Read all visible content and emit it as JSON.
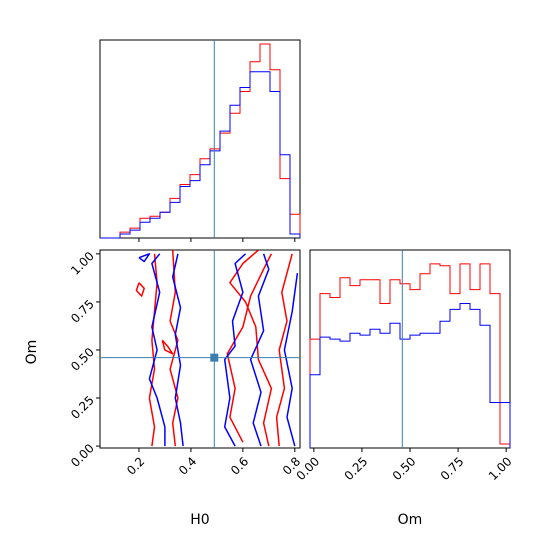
{
  "colors": {
    "series_red": "#ff0000",
    "series_blue": "#0000ff",
    "truth": "#3b7fb0"
  },
  "chart_data": {
    "type": "corner",
    "parameters": [
      "H0",
      "Om"
    ],
    "truth": {
      "H0": 0.49,
      "Om": 0.46
    },
    "panels": [
      {
        "id": "hist_H0",
        "type": "histogram",
        "xlim": [
          0.05,
          0.82
        ],
        "bin_edges": [
          0.05,
          0.0885,
          0.127,
          0.1655,
          0.204,
          0.2425,
          0.281,
          0.3195,
          0.358,
          0.3965,
          0.435,
          0.4735,
          0.512,
          0.5505,
          0.589,
          0.6275,
          0.666,
          0.7045,
          0.743,
          0.7815,
          0.82
        ],
        "series": [
          {
            "color": "red",
            "values": [
              0,
              0,
              0.03,
              0.05,
              0.1,
              0.11,
              0.13,
              0.2,
              0.27,
              0.32,
              0.4,
              0.45,
              0.53,
              0.63,
              0.74,
              0.89,
              0.98,
              0.85,
              0.3,
              0.12
            ]
          },
          {
            "color": "blue",
            "values": [
              0,
              0,
              0.02,
              0.04,
              0.08,
              0.1,
              0.13,
              0.18,
              0.26,
              0.29,
              0.37,
              0.44,
              0.54,
              0.67,
              0.76,
              0.84,
              0.84,
              0.74,
              0.42,
              0.02
            ]
          }
        ]
      },
      {
        "id": "contour_H0_Om",
        "type": "contour",
        "xlabel": "H0",
        "ylabel": "Om",
        "xlim": [
          0.05,
          0.82
        ],
        "ylim": [
          -0.01,
          1.02
        ],
        "xticks": [
          0.2,
          0.4,
          0.6,
          0.8
        ],
        "xtick_labels": [
          "0.2",
          "0.4",
          "0.6",
          "0.8"
        ],
        "yticks": [
          0.0,
          0.25,
          0.5,
          0.75,
          1.0
        ],
        "ytick_labels": [
          "0.00",
          "0.25",
          "0.50",
          "0.75",
          "1.00"
        ],
        "series": [
          {
            "color": "red",
            "paths": [
              [
                [
                  0.25,
                  0.0
                ],
                [
                  0.26,
                  0.1
                ],
                [
                  0.24,
                  0.25
                ],
                [
                  0.26,
                  0.4
                ],
                [
                  0.25,
                  0.55
                ],
                [
                  0.26,
                  0.7
                ],
                [
                  0.27,
                  0.85
                ],
                [
                  0.26,
                  1.0
                ]
              ],
              [
                [
                  0.34,
                  0.0
                ],
                [
                  0.33,
                  0.12
                ],
                [
                  0.35,
                  0.25
                ],
                [
                  0.32,
                  0.4
                ],
                [
                  0.35,
                  0.55
                ],
                [
                  0.32,
                  0.65
                ],
                [
                  0.34,
                  0.8
                ],
                [
                  0.33,
                  1.02
                ]
              ],
              [
                [
                  0.7,
                  0.0
                ],
                [
                  0.68,
                  0.12
                ],
                [
                  0.71,
                  0.3
                ],
                [
                  0.66,
                  0.45
                ],
                [
                  0.65,
                  0.62
                ],
                [
                  0.61,
                  0.75
                ],
                [
                  0.55,
                  0.85
                ],
                [
                  0.6,
                  0.95
                ],
                [
                  0.66,
                  1.02
                ]
              ],
              [
                [
                  0.6,
                  0.02
                ],
                [
                  0.55,
                  0.15
                ],
                [
                  0.57,
                  0.3
                ],
                [
                  0.54,
                  0.48
                ],
                [
                  0.6,
                  0.62
                ],
                [
                  0.63,
                  0.78
                ],
                [
                  0.68,
                  0.92
                ],
                [
                  0.71,
                  1.0
                ]
              ],
              [
                [
                  0.74,
                  0.0
                ],
                [
                  0.73,
                  0.15
                ],
                [
                  0.76,
                  0.3
                ],
                [
                  0.74,
                  0.5
                ],
                [
                  0.77,
                  0.65
                ],
                [
                  0.75,
                  0.8
                ],
                [
                  0.79,
                  1.0
                ]
              ],
              [
                [
                  0.2,
                  0.85
                ],
                [
                  0.22,
                  0.82
                ],
                [
                  0.21,
                  0.78
                ],
                [
                  0.19,
                  0.81
                ],
                [
                  0.2,
                  0.85
                ]
              ],
              [
                [
                  0.29,
                  0.55
                ],
                [
                  0.3,
                  0.5
                ],
                [
                  0.33,
                  0.48
                ],
                [
                  0.31,
                  0.52
                ],
                [
                  0.29,
                  0.55
                ]
              ]
            ]
          },
          {
            "color": "blue",
            "paths": [
              [
                [
                  0.3,
                  0.0
                ],
                [
                  0.3,
                  0.1
                ],
                [
                  0.27,
                  0.25
                ],
                [
                  0.24,
                  0.35
                ],
                [
                  0.27,
                  0.5
                ],
                [
                  0.25,
                  0.62
                ],
                [
                  0.28,
                  0.8
                ],
                [
                  0.25,
                  0.95
                ],
                [
                  0.28,
                  1.0
                ]
              ],
              [
                [
                  0.37,
                  0.0
                ],
                [
                  0.36,
                  0.12
                ],
                [
                  0.34,
                  0.25
                ],
                [
                  0.36,
                  0.42
                ],
                [
                  0.34,
                  0.58
                ],
                [
                  0.36,
                  0.72
                ],
                [
                  0.33,
                  0.88
                ],
                [
                  0.35,
                  1.0
                ]
              ],
              [
                [
                  0.57,
                  0.0
                ],
                [
                  0.53,
                  0.1
                ],
                [
                  0.55,
                  0.25
                ],
                [
                  0.53,
                  0.45
                ],
                [
                  0.57,
                  0.52
                ],
                [
                  0.56,
                  0.65
                ],
                [
                  0.6,
                  0.8
                ],
                [
                  0.57,
                  0.95
                ],
                [
                  0.61,
                  1.0
                ]
              ],
              [
                [
                  0.67,
                  0.0
                ],
                [
                  0.64,
                  0.12
                ],
                [
                  0.67,
                  0.28
                ],
                [
                  0.63,
                  0.45
                ],
                [
                  0.68,
                  0.6
                ],
                [
                  0.66,
                  0.78
                ],
                [
                  0.7,
                  0.92
                ],
                [
                  0.68,
                  1.0
                ]
              ],
              [
                [
                  0.8,
                  0.0
                ],
                [
                  0.77,
                  0.15
                ],
                [
                  0.79,
                  0.3
                ],
                [
                  0.76,
                  0.5
                ],
                [
                  0.79,
                  0.7
                ],
                [
                  0.81,
                  0.9
                ]
              ],
              [
                [
                  0.2,
                  0.98
                ],
                [
                  0.24,
                  1.0
                ],
                [
                  0.22,
                  0.96
                ],
                [
                  0.2,
                  0.98
                ]
              ]
            ]
          }
        ]
      },
      {
        "id": "hist_Om",
        "type": "histogram",
        "xlabel": "Om",
        "xlim": [
          -0.02,
          1.02
        ],
        "xticks": [
          0.0,
          0.25,
          0.5,
          0.75,
          1.0
        ],
        "xtick_labels": [
          "0.00",
          "0.25",
          "0.50",
          "0.75",
          "1.00"
        ],
        "bin_edges": [
          -0.02,
          0.032,
          0.084,
          0.136,
          0.188,
          0.24,
          0.292,
          0.344,
          0.396,
          0.448,
          0.5,
          0.552,
          0.604,
          0.656,
          0.708,
          0.76,
          0.812,
          0.864,
          0.916,
          0.968,
          1.02
        ],
        "series": [
          {
            "color": "red",
            "values": [
              0.55,
              0.78,
              0.76,
              0.86,
              0.82,
              0.85,
              0.85,
              0.73,
              0.85,
              0.83,
              0.8,
              0.88,
              0.93,
              0.92,
              0.78,
              0.93,
              0.8,
              0.93,
              0.78,
              0.02
            ]
          },
          {
            "color": "blue",
            "values": [
              0.37,
              0.56,
              0.55,
              0.54,
              0.58,
              0.57,
              0.6,
              0.58,
              0.63,
              0.55,
              0.57,
              0.58,
              0.58,
              0.64,
              0.7,
              0.73,
              0.7,
              0.62,
              0.23,
              0.23
            ]
          }
        ]
      }
    ]
  }
}
